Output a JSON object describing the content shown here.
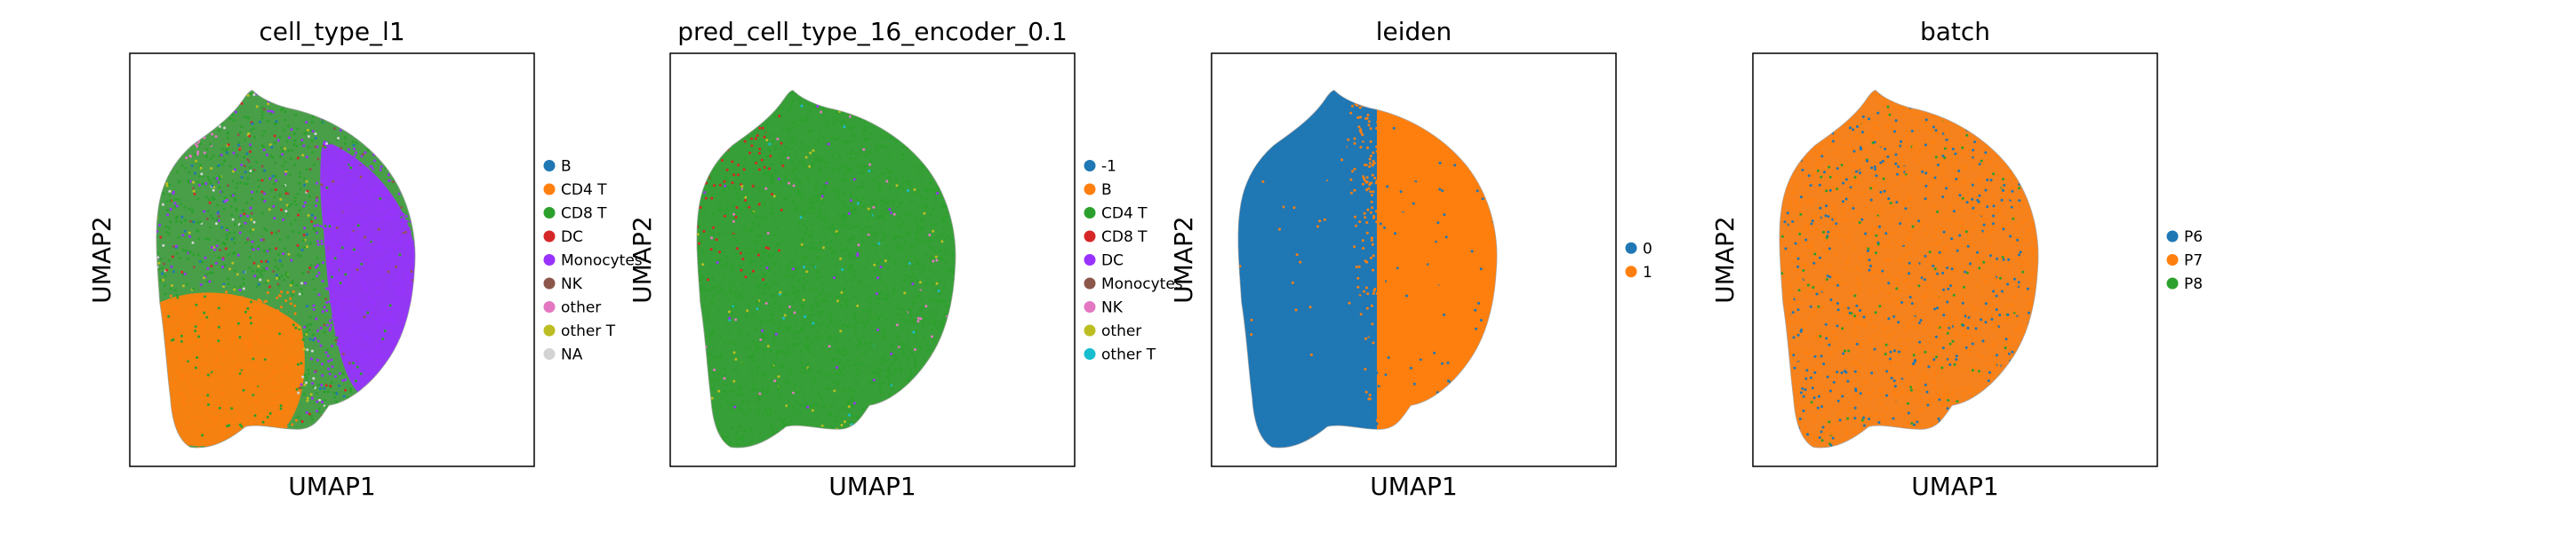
{
  "chart_data": [
    {
      "type": "scatter",
      "title": "cell_type_l1",
      "xlabel": "UMAP1",
      "ylabel": "UMAP2",
      "grid": false,
      "legend_position": "right",
      "legend": [
        {
          "label": "B",
          "color": "#1f77b4"
        },
        {
          "label": "CD4 T",
          "color": "#ff7f0e"
        },
        {
          "label": "CD8 T",
          "color": "#2ca02c"
        },
        {
          "label": "DC",
          "color": "#d62728"
        },
        {
          "label": "Monocytes",
          "color": "#9932ff"
        },
        {
          "label": "NK",
          "color": "#8c564b"
        },
        {
          "label": "other",
          "color": "#e377c2"
        },
        {
          "label": "other T",
          "color": "#bcbd22"
        },
        {
          "label": "NA",
          "color": "#d3d3d3"
        }
      ]
    },
    {
      "type": "scatter",
      "title": "pred_cell_type_16_encoder_0.1",
      "xlabel": "UMAP1",
      "ylabel": "UMAP2",
      "grid": false,
      "legend_position": "right",
      "legend": [
        {
          "label": "-1",
          "color": "#1f77b4"
        },
        {
          "label": "B",
          "color": "#ff7f0e"
        },
        {
          "label": "CD4 T",
          "color": "#2ca02c"
        },
        {
          "label": "CD8 T",
          "color": "#d62728"
        },
        {
          "label": "DC",
          "color": "#9932ff"
        },
        {
          "label": "Monocytes",
          "color": "#8c564b"
        },
        {
          "label": "NK",
          "color": "#e377c2"
        },
        {
          "label": "other",
          "color": "#bcbd22"
        },
        {
          "label": "other T",
          "color": "#17becf"
        }
      ]
    },
    {
      "type": "scatter",
      "title": "leiden",
      "xlabel": "UMAP1",
      "ylabel": "UMAP2",
      "grid": false,
      "legend_position": "right",
      "legend": [
        {
          "label": "0",
          "color": "#1f77b4"
        },
        {
          "label": "1",
          "color": "#ff7f0e"
        }
      ]
    },
    {
      "type": "scatter",
      "title": "batch",
      "xlabel": "UMAP1",
      "ylabel": "UMAP2",
      "grid": false,
      "legend_position": "right",
      "legend": [
        {
          "label": "P6",
          "color": "#1f77b4"
        },
        {
          "label": "P7",
          "color": "#ff7f0e"
        },
        {
          "label": "P8",
          "color": "#2ca02c"
        }
      ]
    }
  ]
}
